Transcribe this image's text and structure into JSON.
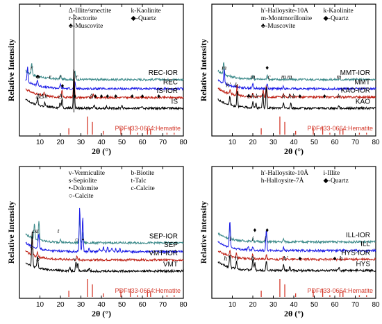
{
  "chart_data": [
    {
      "type": "line",
      "panel": "top-left",
      "xlabel": "2θ (°)",
      "ylabel": "Relative Intensity",
      "xlim": [
        0,
        80
      ],
      "xticks": [
        10,
        20,
        30,
        40,
        50,
        60,
        70,
        80
      ],
      "legend": [
        {
          "sym": "Δ",
          "text": "-Illite/smectite"
        },
        {
          "sym": "k",
          "text": "-Kaolinite"
        },
        {
          "sym": "r",
          "text": "-Rectorite"
        },
        {
          "sym": "◆",
          "text": "-Quartz"
        },
        {
          "sym": "♣",
          "text": "-Muscovite"
        }
      ],
      "series": [
        {
          "name": "REC-IOR",
          "color": "#3c8a8a",
          "offset": 3.3,
          "peaks": [
            [
              6,
              1.2
            ],
            [
              20,
              0.4
            ],
            [
              27,
              0.9
            ]
          ]
        },
        {
          "name": "REC",
          "color": "#1a1ae6",
          "offset": 2.35,
          "peaks": [
            [
              4,
              1.5
            ],
            [
              8.8,
              0.6
            ],
            [
              20,
              0.4
            ],
            [
              27,
              0.7
            ]
          ]
        },
        {
          "name": "IS-IOR",
          "color": "#c02418",
          "offset": 1.45,
          "peaks": [
            [
              12,
              0.3
            ],
            [
              20.8,
              0.7
            ],
            [
              26.6,
              2.8
            ],
            [
              36,
              0.3
            ]
          ]
        },
        {
          "name": "IS",
          "color": "#000000",
          "offset": 0.35,
          "peaks": [
            [
              8.8,
              0.8
            ],
            [
              12.4,
              0.4
            ],
            [
              19.8,
              0.5
            ],
            [
              20.8,
              1.0
            ],
            [
              26.6,
              4.2
            ],
            [
              36.5,
              0.3
            ],
            [
              42.5,
              0.2
            ],
            [
              50,
              0.3
            ],
            [
              60,
              0.2
            ]
          ]
        }
      ],
      "peak_labels": [
        {
          "t": "♦",
          "x": 27,
          "series": "IS"
        },
        {
          "t": "r",
          "x": 6,
          "series": "REC-IOR"
        },
        {
          "t": "♣",
          "x": 9,
          "series": "REC"
        },
        {
          "t": "r",
          "x": 15,
          "series": "REC"
        },
        {
          "t": "r",
          "x": 20,
          "series": "REC"
        },
        {
          "t": "r",
          "x": 28,
          "series": "REC"
        },
        {
          "t": "♦",
          "x": 21,
          "series": "IS-IOR"
        },
        {
          "t": "Δ",
          "x": 9,
          "series": "IS"
        },
        {
          "t": "Δ",
          "x": 11,
          "series": "IS"
        },
        {
          "t": "k",
          "x": 13,
          "series": "IS"
        },
        {
          "t": "Δ",
          "x": 20,
          "series": "IS"
        },
        {
          "t": "Δ",
          "x": 35,
          "series": "IS"
        },
        {
          "t": "♦",
          "x": 37,
          "series": "IS"
        },
        {
          "t": "♦",
          "x": 40,
          "series": "IS"
        },
        {
          "t": "♦",
          "x": 43,
          "series": "IS"
        },
        {
          "t": "♦",
          "x": 47,
          "series": "IS"
        },
        {
          "t": "♦",
          "x": 55,
          "series": "IS"
        },
        {
          "t": "♦",
          "x": 60,
          "series": "IS"
        },
        {
          "t": "♦",
          "x": 68,
          "series": "IS"
        }
      ],
      "reference": {
        "name": "PDF#33-0664:Hematite",
        "lines": [
          [
            24.1,
            0.35
          ],
          [
            33.2,
            1.0
          ],
          [
            35.6,
            0.7
          ],
          [
            40.9,
            0.2
          ],
          [
            49.5,
            0.4
          ],
          [
            54.1,
            0.45
          ],
          [
            57.6,
            0.1
          ],
          [
            62.5,
            0.3
          ],
          [
            64.0,
            0.3
          ],
          [
            72.0,
            0.1
          ],
          [
            75.5,
            0.1
          ]
        ]
      }
    },
    {
      "type": "line",
      "panel": "top-right",
      "xlabel": "2θ (°)",
      "ylabel": "Relative Intensity",
      "xlim": [
        0,
        80
      ],
      "xticks": [
        10,
        20,
        30,
        40,
        50,
        60,
        70,
        80
      ],
      "legend": [
        {
          "sym": "h'",
          "text": "-Halloysite-10A"
        },
        {
          "sym": "k",
          "text": "-Kaolinite"
        },
        {
          "sym": "m",
          "text": "-Montmorillonite"
        },
        {
          "sym": "◆",
          "text": "-Quartz"
        },
        {
          "sym": "♣",
          "text": "-Muscovite"
        }
      ],
      "series": [
        {
          "name": "MMT-IOR",
          "color": "#3c8a8a",
          "offset": 3.3,
          "peaks": [
            [
              5.8,
              1.3
            ],
            [
              20,
              0.4
            ],
            [
              27,
              0.5
            ]
          ]
        },
        {
          "name": "MMT",
          "color": "#1a1ae6",
          "offset": 2.35,
          "peaks": [
            [
              6,
              1.4
            ],
            [
              20,
              0.5
            ],
            [
              27,
              0.5
            ],
            [
              35,
              0.3
            ]
          ]
        },
        {
          "name": "KAO-IOR",
          "color": "#c02418",
          "offset": 1.5,
          "peaks": [
            [
              8.8,
              0.4
            ],
            [
              12.4,
              1.1
            ],
            [
              20,
              0.3
            ],
            [
              25,
              0.7
            ],
            [
              26.6,
              1.2
            ],
            [
              35,
              0.4
            ],
            [
              38,
              0.3
            ]
          ]
        },
        {
          "name": "KAO",
          "color": "#000000",
          "offset": 0.35,
          "peaks": [
            [
              8.8,
              0.9
            ],
            [
              12.4,
              1.7
            ],
            [
              20,
              0.6
            ],
            [
              21.5,
              0.5
            ],
            [
              24.9,
              1.6
            ],
            [
              26.6,
              2.2
            ],
            [
              35,
              0.6
            ],
            [
              38.5,
              0.5
            ],
            [
              62,
              0.3
            ]
          ]
        }
      ],
      "peak_labels": [
        {
          "t": "m",
          "x": 6,
          "series": "MMT-IOR"
        },
        {
          "t": "♦",
          "x": 27,
          "series": "MMT-IOR"
        },
        {
          "t": "m",
          "x": 20,
          "series": "MMT"
        },
        {
          "t": "c",
          "x": 28,
          "series": "MMT"
        },
        {
          "t": "m",
          "x": 35,
          "series": "MMT"
        },
        {
          "t": "m",
          "x": 38,
          "series": "MMT"
        },
        {
          "t": "m",
          "x": 62,
          "series": "MMT"
        },
        {
          "t": "h'",
          "x": 8,
          "series": "KAO-IOR"
        },
        {
          "t": "k",
          "x": 12,
          "series": "KAO-IOR"
        },
        {
          "t": "♣",
          "x": 18,
          "series": "KAO"
        },
        {
          "t": "k",
          "x": 20,
          "series": "KAO"
        },
        {
          "t": "k",
          "x": 22,
          "series": "KAO"
        },
        {
          "t": "k",
          "x": 35,
          "series": "KAO"
        },
        {
          "t": "k",
          "x": 38,
          "series": "KAO"
        },
        {
          "t": "k",
          "x": 40,
          "series": "KAO"
        },
        {
          "t": "♦",
          "x": 43,
          "series": "KAO"
        },
        {
          "t": "♦",
          "x": 55,
          "series": "KAO"
        },
        {
          "t": "k",
          "x": 62,
          "series": "KAO"
        }
      ],
      "reference": {
        "name": "PDF#33-0664:Hematite",
        "lines": [
          [
            24.1,
            0.35
          ],
          [
            33.2,
            1.0
          ],
          [
            35.6,
            0.7
          ],
          [
            40.9,
            0.2
          ],
          [
            49.5,
            0.4
          ],
          [
            54.1,
            0.45
          ],
          [
            57.6,
            0.1
          ],
          [
            62.5,
            0.3
          ],
          [
            64.0,
            0.3
          ],
          [
            72.0,
            0.1
          ],
          [
            75.5,
            0.1
          ]
        ]
      }
    },
    {
      "type": "line",
      "panel": "bottom-left",
      "xlabel": "2θ (°)",
      "ylabel": "Relative Intensity",
      "xlim": [
        0,
        80
      ],
      "xticks": [
        10,
        20,
        30,
        40,
        50,
        60,
        70,
        80
      ],
      "legend": [
        {
          "sym": "v",
          "text": "-Vermiculite"
        },
        {
          "sym": "b",
          "text": "-Biotite"
        },
        {
          "sym": "s",
          "text": "-Sepiolite"
        },
        {
          "sym": "t",
          "text": "-Talc"
        },
        {
          "sym": "•",
          "text": "-Dolomite"
        },
        {
          "sym": "c",
          "text": "-Calcite"
        },
        {
          "sym": "○",
          "text": "-Calcite"
        }
      ],
      "series": [
        {
          "name": "SEP-IOR",
          "color": "#3c8a8a",
          "offset": 3.2,
          "peaks": [
            [
              7.3,
              1.6
            ],
            [
              9.5,
              2.0
            ],
            [
              20,
              0.4
            ],
            [
              29.4,
              2.5
            ],
            [
              31,
              1.0
            ]
          ]
        },
        {
          "name": "SEP",
          "color": "#1a1ae6",
          "offset": 2.3,
          "peaks": [
            [
              9.4,
              1.6
            ],
            [
              29.4,
              4.5
            ],
            [
              30.9,
              3.5
            ],
            [
              34,
              0.3
            ],
            [
              39,
              0.4
            ],
            [
              41,
              0.5
            ],
            [
              43,
              0.5
            ],
            [
              45,
              0.4
            ],
            [
              47,
              0.3
            ],
            [
              49,
              0.3
            ]
          ]
        },
        {
          "name": "VMT-IOR",
          "color": "#c02418",
          "offset": 1.45,
          "peaks": [
            [
              6.2,
              1.5
            ],
            [
              8.8,
              0.5
            ],
            [
              28,
              0.3
            ]
          ]
        },
        {
          "name": "VMT",
          "color": "#000000",
          "offset": 0.3,
          "peaks": [
            [
              6.2,
              3.5
            ],
            [
              8.8,
              1.2
            ],
            [
              24.6,
              0.4
            ],
            [
              27.6,
              1.0
            ],
            [
              28.5,
              0.8
            ],
            [
              34,
              0.3
            ]
          ]
        }
      ],
      "peak_labels": [
        {
          "t": "t",
          "x": 9,
          "series": "SEP-IOR"
        },
        {
          "t": "c",
          "x": 7,
          "series": "SEP-IOR"
        },
        {
          "t": "s",
          "x": 8,
          "series": "SEP-IOR"
        },
        {
          "t": "t",
          "x": 19,
          "series": "SEP-IOR"
        },
        {
          "t": "○",
          "x": 28,
          "series": "SEP"
        },
        {
          "t": "•",
          "x": 31,
          "series": "SEP"
        },
        {
          "t": "v",
          "x": 6,
          "series": "VMT-IOR"
        },
        {
          "t": "b",
          "x": 9,
          "series": "VMT"
        },
        {
          "t": "v",
          "x": 27,
          "series": "VMT"
        }
      ],
      "reference": {
        "name": "PDF#33-0664:Hematite",
        "lines": [
          [
            24.1,
            0.35
          ],
          [
            33.2,
            1.0
          ],
          [
            35.6,
            0.7
          ],
          [
            40.9,
            0.2
          ],
          [
            49.5,
            0.4
          ],
          [
            54.1,
            0.45
          ],
          [
            57.6,
            0.1
          ],
          [
            62.5,
            0.3
          ],
          [
            64.0,
            0.3
          ],
          [
            72.0,
            0.1
          ],
          [
            75.5,
            0.1
          ]
        ]
      }
    },
    {
      "type": "line",
      "panel": "bottom-right",
      "xlabel": "2θ (°)",
      "ylabel": "Relative Intensity",
      "xlim": [
        0,
        80
      ],
      "xticks": [
        10,
        20,
        30,
        40,
        50,
        60,
        70,
        80
      ],
      "legend": [
        {
          "sym": "h'",
          "text": "-Halloysite-10Å"
        },
        {
          "sym": "i",
          "text": "-Illite"
        },
        {
          "sym": "h",
          "text": "-Halloysite-7Å"
        },
        {
          "sym": "◆",
          "text": "-Quartz"
        }
      ],
      "series": [
        {
          "name": "ILL-IOR",
          "color": "#3c8a8a",
          "offset": 3.3,
          "peaks": [
            [
              8.8,
              1.2
            ],
            [
              20,
              0.3
            ],
            [
              26.6,
              0.8
            ],
            [
              35,
              0.3
            ]
          ]
        },
        {
          "name": "ILL",
          "color": "#1a1ae6",
          "offset": 2.4,
          "peaks": [
            [
              8.8,
              2.8
            ],
            [
              17.8,
              0.3
            ],
            [
              20,
              0.4
            ],
            [
              26.6,
              2.2
            ],
            [
              35,
              0.3
            ]
          ]
        },
        {
          "name": "HYS-IOR",
          "color": "#c02418",
          "offset": 1.5,
          "peaks": [
            [
              8.8,
              0.6
            ],
            [
              12,
              0.5
            ],
            [
              20,
              0.5
            ],
            [
              26.6,
              0.4
            ],
            [
              35,
              0.3
            ]
          ]
        },
        {
          "name": "HYS",
          "color": "#000000",
          "offset": 0.35,
          "peaks": [
            [
              8.8,
              1.4
            ],
            [
              12,
              0.8
            ],
            [
              20,
              1.2
            ],
            [
              21,
              0.7
            ],
            [
              26.6,
              1.0
            ],
            [
              35,
              0.7
            ],
            [
              38,
              0.4
            ],
            [
              62,
              0.3
            ]
          ]
        }
      ],
      "peak_labels": [
        {
          "t": "♦",
          "x": 21,
          "series": "ILL-IOR"
        },
        {
          "t": "♦",
          "x": 27,
          "series": "ILL-IOR"
        },
        {
          "t": "i",
          "x": 9,
          "series": "ILL"
        },
        {
          "t": "i",
          "x": 20,
          "series": "ILL"
        },
        {
          "t": "i",
          "x": 26,
          "series": "ILL"
        },
        {
          "t": "h'",
          "x": 7,
          "series": "HYS"
        },
        {
          "t": "h",
          "x": 12,
          "series": "HYS"
        },
        {
          "t": "h",
          "x": 20,
          "series": "HYS"
        },
        {
          "t": "h'",
          "x": 36,
          "series": "HYS"
        },
        {
          "t": "♦",
          "x": 43,
          "series": "HYS"
        },
        {
          "t": "♦",
          "x": 60,
          "series": "HYS"
        },
        {
          "t": "h",
          "x": 63,
          "series": "HYS"
        }
      ],
      "reference": {
        "name": "PDF#33-0664:Hematite",
        "lines": [
          [
            24.1,
            0.35
          ],
          [
            33.2,
            1.0
          ],
          [
            35.6,
            0.7
          ],
          [
            40.9,
            0.2
          ],
          [
            49.5,
            0.4
          ],
          [
            54.1,
            0.45
          ],
          [
            57.6,
            0.1
          ],
          [
            62.5,
            0.3
          ],
          [
            64.0,
            0.3
          ],
          [
            72.0,
            0.1
          ],
          [
            75.5,
            0.1
          ]
        ]
      }
    }
  ]
}
